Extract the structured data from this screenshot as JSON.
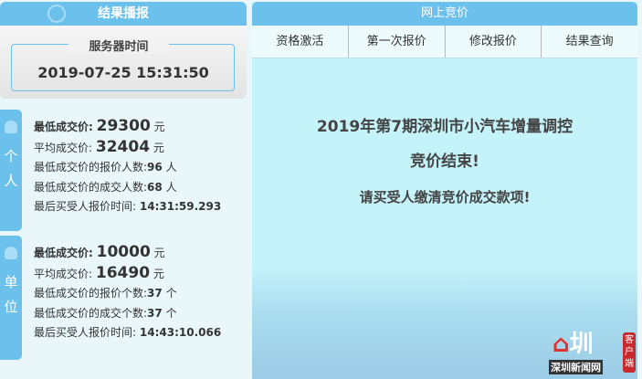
{
  "left": {
    "title": "结果播报",
    "server_time_label": "服务器时间",
    "server_time": "2019-07-25 15:31:50"
  },
  "personal": {
    "side_label": [
      "个",
      "人"
    ],
    "min_price_label": "最低成交价:",
    "min_price": "29300",
    "unit": "元",
    "avg_price_label": "平均成交价:",
    "avg_price": "32404",
    "min_bidders_label": "最低成交价的报价人数:",
    "min_bidders": "96",
    "min_bidders_unit": "人",
    "min_deals_label": "最低成交价的成交人数:",
    "min_deals": "68",
    "min_deals_unit": "人",
    "last_time_label": "最后买受人报价时间:",
    "last_time": "14:31:59.293"
  },
  "company": {
    "side_label": [
      "单",
      "位"
    ],
    "min_price_label": "最低成交价:",
    "min_price": "10000",
    "unit": "元",
    "avg_price_label": "平均成交价:",
    "avg_price": "16490",
    "min_bidders_label": "最低成交价的报价个数:",
    "min_bidders": "37",
    "min_bidders_unit": "个",
    "min_deals_label": "最低成交价的成交个数:",
    "min_deals": "37",
    "min_deals_unit": "个",
    "last_time_label": "最后买受人报价时间:",
    "last_time": "14:43:10.066"
  },
  "right": {
    "title": "网上竞价",
    "tabs": [
      "资格激活",
      "第一次报价",
      "修改报价",
      "结果查询"
    ],
    "msg1": "2019年第7期深圳市小汽车增量调控",
    "msg2": "竞价结束!",
    "msg3": "请买受人缴清竞价成交款项!"
  },
  "logo": {
    "char": "圳",
    "name": "深圳新闻网",
    "badge": "客户端"
  },
  "colors": {
    "accent": "#6cc0ec",
    "bg": "#c5f1f9"
  }
}
